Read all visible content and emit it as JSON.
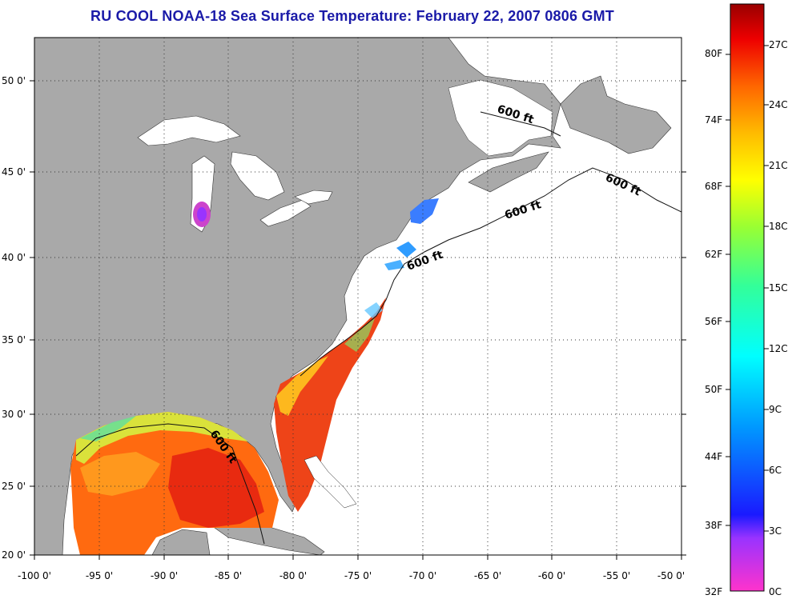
{
  "title": "RU COOL  NOAA-18  Sea Surface Temperature:  February 22, 2007 0806 GMT",
  "map": {
    "lon_ticks": [
      "-100 0'",
      "-95 0'",
      "-90 0'",
      "-85 0'",
      "-80 0'",
      "-75 0'",
      "-70 0'",
      "-65 0'",
      "-60 0'",
      "-55 0'",
      "-50 0'"
    ],
    "lat_ticks": [
      "20 0'",
      "25 0'",
      "30 0'",
      "35 0'",
      "40 0'",
      "45 0'",
      "50 0'"
    ],
    "lon_range": [
      -100,
      -50
    ],
    "lat_range": [
      20,
      52.5
    ],
    "grid": "dotted",
    "isobath_labels": [
      "600 ft",
      "600 ft",
      "600 ft",
      "600 ft",
      "600 ft"
    ],
    "colors": {
      "land": "#a9a9a9",
      "ocean_no_data": "#ffffff",
      "lakes": "#ffffff",
      "title": "#1a1aa8"
    }
  },
  "colorbar": {
    "fahrenheit_labels": [
      "80F",
      "74F",
      "68F",
      "62F",
      "56F",
      "50F",
      "44F",
      "38F",
      "32F"
    ],
    "celsius_labels": [
      "27C",
      "24C",
      "21C",
      "18C",
      "15C",
      "12C",
      "9C",
      "6C",
      "3C",
      "0C"
    ],
    "range_c": [
      0,
      28
    ]
  }
}
